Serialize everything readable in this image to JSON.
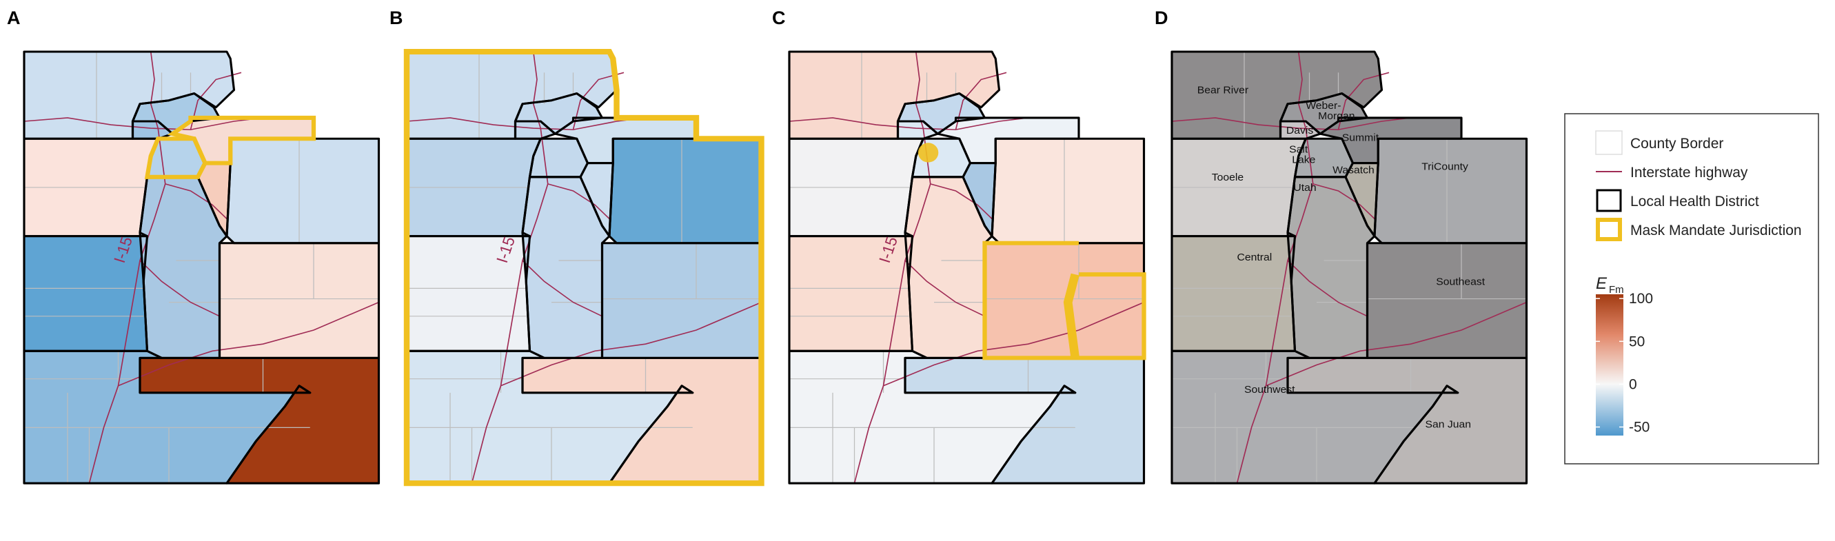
{
  "panels": [
    {
      "letter": "A"
    },
    {
      "letter": "B"
    },
    {
      "letter": "C"
    },
    {
      "letter": "D"
    }
  ],
  "highway_label": "I-15",
  "panel_a": {
    "bear_river": "#cddff0",
    "weber": "#a9cbe6",
    "davis": "#9fc4e4",
    "salt_lake": "#b6d3eb",
    "summit": "#f7dcd3",
    "wasatch": "#f6cdbc",
    "tooele": "#fbe3dc",
    "utah": "#a9c8e3",
    "tricounty": "#cddff0",
    "central": "#5fa4d3",
    "southeast": "#f9e1d8",
    "southwest": "#8bbadd",
    "san_juan": "#a23b12"
  },
  "panel_b": {
    "bear_river": "#ccdeef",
    "weber": "#c4d9ed",
    "davis": "#c4d9ed",
    "salt_lake": "#c4d9ed",
    "summit": "#d1e2f0",
    "wasatch": "#cddff0",
    "tooele": "#bcd4ea",
    "utah": "#c4d9ed",
    "tricounty": "#66a8d4",
    "central": "#eef1f5",
    "southeast": "#b1cde6",
    "southwest": "#d6e5f2",
    "san_juan": "#f8d6c9"
  },
  "panel_c": {
    "bear_river": "#f8d9ce",
    "weber": "#c4d9ed",
    "davis": "#dce9f4",
    "salt_lake": "#dce9f4",
    "summit": "#edf2f7",
    "wasatch": "#a9c8e3",
    "tooele": "#f2f2f3",
    "utah": "#f9dfd5",
    "tricounty": "#fae5dd",
    "central": "#f9ddd2",
    "southeast": "#f6c2ae",
    "southwest": "#f1f3f6",
    "san_juan": "#c8dbec"
  },
  "panel_d": {
    "bear_river": "#8e8c8d",
    "weber": "#9b9b9e",
    "davis": "#c9c6c8",
    "salt_lake": "#aaadb0",
    "summit": "#8b8b8e",
    "wasatch": "#b6b2a8",
    "tooele": "#d3d0cf",
    "utah": "#adadac",
    "tricounty": "#a9aaad",
    "central": "#bab6ab",
    "southeast": "#8e8c8d",
    "southwest": "#adaeb1",
    "san_juan": "#bbb7b6"
  },
  "district_labels": {
    "bear_river": "Bear River",
    "weber": "Weber-",
    "morgan": "Morgan",
    "davis": "Davis",
    "salt": "Salt",
    "lake": "Lake",
    "summit": "Summit",
    "wasatch": "Wasatch",
    "tooele": "Tooele",
    "utah": "Utah",
    "tricounty": "TriCounty",
    "central": "Central",
    "southeast": "Southeast",
    "southwest": "Southwest",
    "san_juan": "San Juan"
  },
  "legend": {
    "items": [
      {
        "label": "County Border",
        "type": "county"
      },
      {
        "label": "Interstate highway",
        "type": "highway"
      },
      {
        "label": "Local Health District",
        "type": "lhd"
      },
      {
        "label": "Mask Mandate Jurisdiction",
        "type": "mask"
      }
    ],
    "colorbar": {
      "title": "E",
      "subscript": "Fm",
      "ticks": [
        {
          "value": 100,
          "label": "100"
        },
        {
          "value": 50,
          "label": "50"
        },
        {
          "value": 0,
          "label": "0"
        },
        {
          "value": -50,
          "label": "-50"
        }
      ],
      "min": -60,
      "max": 105,
      "colors": {
        "high": "#a23b12",
        "mid": "#f7f7f7",
        "low": "#4f98cd"
      }
    }
  },
  "colors": {
    "highway": "#a02c55",
    "mask": "#f0c020",
    "county": "#bdbdbd",
    "district": "#000000"
  }
}
